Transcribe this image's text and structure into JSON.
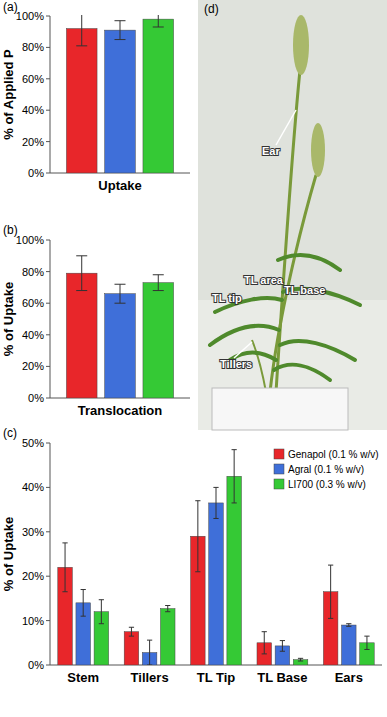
{
  "chart_data": [
    {
      "type": "bar",
      "title": "(a)",
      "y_label": "% of Applied P",
      "categories": [
        "Uptake"
      ],
      "series": [
        {
          "color": "#e8262a",
          "values": [
            92
          ],
          "errors": [
            11
          ]
        },
        {
          "color": "#3f6fd9",
          "values": [
            91
          ],
          "errors": [
            6
          ]
        },
        {
          "color": "#35c935",
          "values": [
            98
          ],
          "errors": [
            5
          ]
        }
      ],
      "ylim": [
        0,
        100
      ],
      "yticks": [
        {
          "value": 0,
          "label": "0%"
        },
        {
          "value": 20,
          "label": "20%"
        },
        {
          "value": 40,
          "label": "40%"
        },
        {
          "value": 60,
          "label": "60%"
        },
        {
          "value": 80,
          "label": "80%"
        },
        {
          "value": 100,
          "label": "100%"
        }
      ],
      "grid": false
    },
    {
      "type": "bar",
      "title": "(b)",
      "y_label": "% of Uptake",
      "categories": [
        "Translocation"
      ],
      "series": [
        {
          "color": "#e8262a",
          "values": [
            79
          ],
          "errors": [
            11
          ]
        },
        {
          "color": "#3f6fd9",
          "values": [
            66
          ],
          "errors": [
            6
          ]
        },
        {
          "color": "#35c935",
          "values": [
            73
          ],
          "errors": [
            5
          ]
        }
      ],
      "ylim": [
        0,
        100
      ],
      "yticks": [
        {
          "value": 0,
          "label": "0%"
        },
        {
          "value": 20,
          "label": "20%"
        },
        {
          "value": 40,
          "label": "40%"
        },
        {
          "value": 60,
          "label": "60%"
        },
        {
          "value": 80,
          "label": "80%"
        },
        {
          "value": 100,
          "label": "100%"
        }
      ],
      "grid": false
    },
    {
      "type": "bar",
      "title": "(c)",
      "y_label": "% of Uptake",
      "categories": [
        "Stem",
        "Tillers",
        "TL Tip",
        "TL Base",
        "Ears"
      ],
      "series": [
        {
          "name": "Genapol (0.1 % w/v)",
          "color": "#e8262a",
          "values": [
            22,
            7.5,
            29,
            5,
            16.5
          ],
          "errors": [
            5.5,
            1,
            8,
            2.5,
            6
          ]
        },
        {
          "name": "Agral (0.1 % w/v)",
          "color": "#3f6fd9",
          "values": [
            14,
            2.8,
            36.5,
            4.3,
            9
          ],
          "errors": [
            3,
            2.8,
            3.5,
            1.2,
            0.3
          ]
        },
        {
          "name": "LI700 (0.3 % w/v)",
          "color": "#35c935",
          "values": [
            12,
            12.7,
            42.5,
            1.2,
            5
          ],
          "errors": [
            2.7,
            0.7,
            6,
            0.3,
            1.5
          ]
        }
      ],
      "ylim": [
        0,
        50
      ],
      "yticks": [
        {
          "value": 0,
          "label": "0%"
        },
        {
          "value": 10,
          "label": "10%"
        },
        {
          "value": 20,
          "label": "20%"
        },
        {
          "value": 30,
          "label": "30%"
        },
        {
          "value": 40,
          "label": "40%"
        },
        {
          "value": 50,
          "label": "50%"
        }
      ],
      "grid": false,
      "legend": "top-right"
    }
  ],
  "photo": {
    "panel_label": "(d)",
    "labels": [
      "Ear",
      "TL area",
      "TL tip",
      "TL base",
      "Tillers"
    ]
  }
}
